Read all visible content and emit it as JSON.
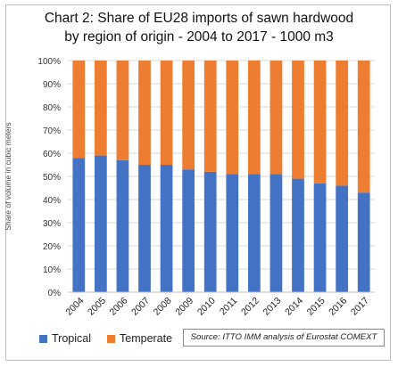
{
  "chart_data": {
    "type": "bar",
    "stacked": true,
    "percent": true,
    "title": "Chart 2: Share of EU28 imports of sawn hardwood by region of origin - 2004 to 2017 - 1000 m3",
    "title_lines": [
      "Chart 2: Share of EU28 imports of sawn hardwood",
      "by region of origin - 2004 to 2017 - 1000 m3"
    ],
    "xlabel": "",
    "ylabel": "Share of volume in cubic meters",
    "ylim": [
      0,
      100
    ],
    "yticks": [
      "0%",
      "10%",
      "20%",
      "30%",
      "40%",
      "50%",
      "60%",
      "70%",
      "80%",
      "90%",
      "100%"
    ],
    "categories": [
      "2004",
      "2005",
      "2006",
      "2007",
      "2008",
      "2009",
      "2010",
      "2011",
      "2012",
      "2013",
      "2014",
      "2015",
      "2016",
      "2017"
    ],
    "series": [
      {
        "name": "Tropical",
        "color": "#4472c4",
        "values": [
          58,
          59,
          57,
          55,
          55,
          53,
          52,
          51,
          51,
          51,
          49,
          47,
          46,
          43
        ]
      },
      {
        "name": "Temperate",
        "color": "#ed7d31",
        "values": [
          42,
          41,
          43,
          45,
          45,
          47,
          48,
          49,
          49,
          49,
          51,
          53,
          54,
          57
        ]
      }
    ],
    "grid": true,
    "legend": "bottom-left",
    "source": "Source: ITTO IMM analysis of Eurostat COMEXT"
  }
}
